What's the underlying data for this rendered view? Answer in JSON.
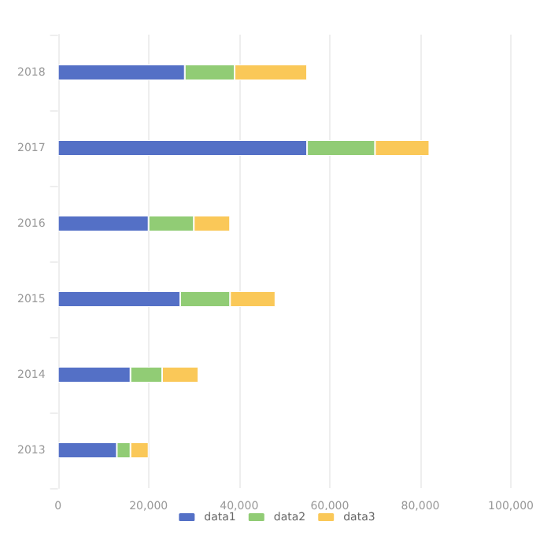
{
  "chart_data": {
    "type": "bar",
    "orientation": "horizontal",
    "stacked": true,
    "categories": [
      "2018",
      "2017",
      "2016",
      "2015",
      "2014",
      "2013"
    ],
    "series": [
      {
        "name": "data1",
        "color": "#5470c6",
        "values": [
          28000,
          55000,
          20000,
          27000,
          16000,
          13000
        ]
      },
      {
        "name": "data2",
        "color": "#91cc75",
        "values": [
          11000,
          15000,
          10000,
          11000,
          7000,
          3000
        ]
      },
      {
        "name": "data3",
        "color": "#fac858",
        "values": [
          16000,
          12000,
          8000,
          10000,
          8000,
          4000
        ]
      }
    ],
    "xlim": [
      0,
      100000
    ],
    "xticks": [
      {
        "value": 0,
        "label": "0"
      },
      {
        "value": 20000,
        "label": "20,000"
      },
      {
        "value": 40000,
        "label": "40,000"
      },
      {
        "value": 60000,
        "label": "60,000"
      },
      {
        "value": 80000,
        "label": "80,000"
      },
      {
        "value": 100000,
        "label": "100,000"
      }
    ],
    "grid": "x",
    "legend": "bottom"
  }
}
